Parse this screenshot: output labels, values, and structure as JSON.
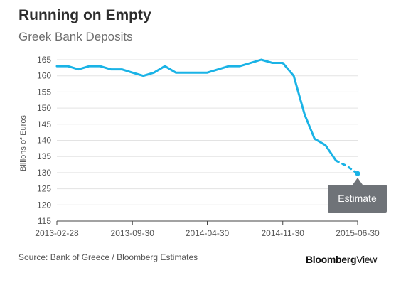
{
  "title": "Running on Empty",
  "subtitle": "Greek Bank Deposits",
  "source": "Source: Bank of Greece / Bloomberg Estimates",
  "brand": {
    "part1": "Bloomberg",
    "part2": "View"
  },
  "annotation": "Estimate",
  "colors": {
    "line": "#1ab3e6",
    "grid": "#e3e3e3",
    "annotation_bg": "#6f7378"
  },
  "chart_data": {
    "type": "line",
    "title": "Running on Empty",
    "subtitle": "Greek Bank Deposits",
    "xlabel": "",
    "ylabel": "Billions of Euros",
    "ylim": [
      115,
      165
    ],
    "yticks": [
      115,
      120,
      125,
      130,
      135,
      140,
      145,
      150,
      155,
      160,
      165
    ],
    "xlim": [
      "2013-02-28",
      "2015-06-30"
    ],
    "xticks": [
      "2013-02-28",
      "2013-09-30",
      "2014-04-30",
      "2014-11-30",
      "2015-06-30"
    ],
    "grid": true,
    "series": [
      {
        "style": "solid",
        "x": [
          "2013-02-28",
          "2013-03-31",
          "2013-04-30",
          "2013-05-31",
          "2013-06-30",
          "2013-07-31",
          "2013-08-31",
          "2013-09-30",
          "2013-10-31",
          "2013-11-30",
          "2013-12-31",
          "2014-01-31",
          "2014-02-28",
          "2014-03-31",
          "2014-04-30",
          "2014-05-31",
          "2014-06-30",
          "2014-07-31",
          "2014-08-31",
          "2014-09-30",
          "2014-10-31",
          "2014-11-30",
          "2014-12-31",
          "2015-01-31",
          "2015-02-28",
          "2015-03-31",
          "2015-04-30"
        ],
        "y": [
          163,
          163,
          162,
          163,
          163,
          162,
          162,
          161,
          160,
          161,
          163,
          161,
          161,
          161,
          161,
          162,
          163,
          163,
          164,
          165,
          164,
          164,
          160,
          148,
          140.5,
          138.5,
          133.7
        ]
      },
      {
        "style": "dotted",
        "x": [
          "2015-04-30",
          "2015-05-31",
          "2015-06-30"
        ],
        "y": [
          133.7,
          132,
          129.7
        ]
      }
    ],
    "annotations": [
      {
        "text": "Estimate",
        "x": "2015-06-30",
        "y": 129.7
      }
    ]
  }
}
